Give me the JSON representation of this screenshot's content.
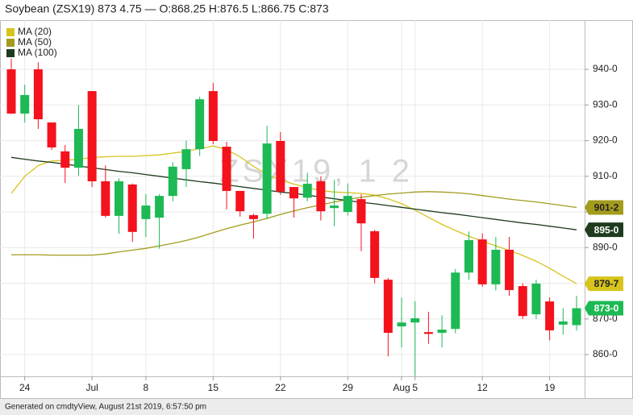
{
  "chart_data": {
    "type": "candlestick",
    "title": "Soybean (ZSX19) 873 4.75 — O:868.25 H:876.5 L:866.75 C:873",
    "watermark": "ZSX19, 1 2",
    "categories": [
      null,
      "24",
      null,
      null,
      null,
      null,
      "Jul",
      null,
      null,
      null,
      "8",
      null,
      null,
      null,
      null,
      "15",
      null,
      null,
      null,
      null,
      "22",
      null,
      null,
      null,
      null,
      "29",
      null,
      null,
      null,
      "Aug",
      "5",
      null,
      null,
      null,
      null,
      "12",
      null,
      null,
      null,
      null,
      "19",
      null,
      null
    ],
    "open": [
      940,
      927.6,
      940,
      925.1,
      917,
      912.4,
      933.9,
      908.6,
      898.9,
      907.7,
      898,
      898.4,
      904.5,
      912,
      917.6,
      933.9,
      918.3,
      905.9,
      899.1,
      899.5,
      919.9,
      907,
      904,
      908.6,
      901.1,
      900,
      903.6,
      894.6,
      881,
      867.9,
      869,
      866.3,
      866.1,
      867.2,
      883,
      892.3,
      879.7,
      889.4,
      879.2,
      871.3,
      874.9,
      868.4,
      868.25
    ],
    "high": [
      943,
      935.7,
      942,
      925.1,
      918.8,
      930,
      933.9,
      913.1,
      909.4,
      908,
      905,
      905,
      914,
      920,
      932.3,
      936.2,
      919.7,
      905.9,
      899.5,
      924.2,
      922.4,
      907,
      911,
      910,
      909,
      908,
      905,
      895,
      881.5,
      876,
      875,
      872,
      871,
      884,
      894.5,
      894,
      893,
      893,
      880,
      881,
      876,
      873,
      876.5
    ],
    "low": [
      927.5,
      925.1,
      923.3,
      917.4,
      908.1,
      910.2,
      907,
      898.4,
      893.9,
      891.6,
      893,
      889.7,
      903,
      907,
      915.7,
      919,
      900.7,
      898.7,
      892.5,
      898,
      904.8,
      898.4,
      903,
      897.6,
      896,
      899,
      889,
      880,
      859.5,
      862,
      854,
      863,
      862,
      866,
      881,
      879,
      878,
      876.5,
      870,
      870,
      864,
      865.6,
      866.75
    ],
    "close": [
      927.6,
      932.8,
      926,
      918.1,
      912.4,
      923.3,
      908.6,
      898.9,
      908.6,
      894.4,
      901.8,
      904.5,
      912.7,
      917.6,
      931.6,
      919.9,
      905.9,
      900.2,
      898,
      919.2,
      905.7,
      903.8,
      907.9,
      900.2,
      901.8,
      904.5,
      896.8,
      881.5,
      866.1,
      869,
      870.2,
      865.8,
      867,
      883,
      892.1,
      879.7,
      889.4,
      878.1,
      870.8,
      879.9,
      866.8,
      869.3,
      873
    ],
    "up_color": "#1db954",
    "down_color": "#f4121c",
    "series": [
      {
        "name": "MA (20)",
        "color": "#d6c41c",
        "values": [
          905.2,
          910,
          913,
          914.3,
          914.5,
          914.8,
          915.3,
          915.5,
          915.6,
          915.6,
          915.8,
          916,
          916.5,
          917,
          917.8,
          918.5,
          917.5,
          915.5,
          912.8,
          910.5,
          909,
          907.8,
          906.8,
          906,
          905.6,
          905.4,
          905.2,
          904.7,
          903.7,
          902.3,
          900.5,
          898.5,
          896.5,
          894.8,
          893.2,
          891.8,
          890.5,
          889.2,
          887.8,
          886.2,
          884.2,
          882,
          879.875
        ]
      },
      {
        "name": "MA (50)",
        "color": "#a39b1c",
        "values": [
          888,
          888,
          888,
          887.9,
          887.9,
          887.9,
          887.9,
          888.2,
          888.8,
          889.3,
          889.8,
          890.5,
          891.2,
          892,
          893,
          894.2,
          895.3,
          896.3,
          897.2,
          898.2,
          899.3,
          900.3,
          901.2,
          902,
          902.8,
          903.5,
          904.1,
          904.6,
          905,
          905.3,
          905.6,
          905.7,
          905.6,
          905.4,
          905.1,
          904.6,
          904.1,
          903.6,
          903.2,
          902.8,
          902.3,
          901.8,
          901.25
        ]
      },
      {
        "name": "MA (100)",
        "color": "#1e3b1e",
        "values": [
          915.3,
          914.8,
          914.3,
          913.9,
          913.4,
          912.9,
          912.4,
          911.9,
          911.4,
          911,
          910.5,
          910,
          909.5,
          909,
          908.5,
          908.1,
          907.6,
          907.1,
          906.6,
          906.1,
          905.6,
          905.2,
          904.7,
          904.2,
          903.7,
          903.2,
          902.7,
          902.3,
          901.8,
          901.3,
          900.8,
          900.3,
          899.8,
          899.4,
          898.9,
          898.4,
          897.9,
          897.4,
          896.9,
          896.5,
          896,
          895.5,
          895
        ]
      }
    ],
    "price_labels": [
      {
        "value": 901.25,
        "label": "901-2",
        "color": "#a39b1c"
      },
      {
        "value": 895,
        "label": "895-0",
        "color": "#1e3b1e"
      },
      {
        "value": 879.875,
        "label": "879-7",
        "color": "#d6c41c"
      },
      {
        "value": 873,
        "label": "873-0",
        "color": "#1db954"
      }
    ],
    "ylim": [
      853.9,
      953.8
    ],
    "yticks": [
      {
        "value": 860,
        "label": "860-0"
      },
      {
        "value": 870,
        "label": "870-0"
      },
      {
        "value": 880,
        "label": "880-0"
      },
      {
        "value": 890,
        "label": "890-0"
      },
      {
        "value": 900,
        "label": "900-0"
      },
      {
        "value": 910,
        "label": "910-0"
      },
      {
        "value": 920,
        "label": "920-0"
      },
      {
        "value": 930,
        "label": "930-0"
      },
      {
        "value": 940,
        "label": "940-0"
      }
    ],
    "grid": true
  },
  "footer": "Generated on cmdtyView, August 21st 2019, 6:57:50 pm"
}
